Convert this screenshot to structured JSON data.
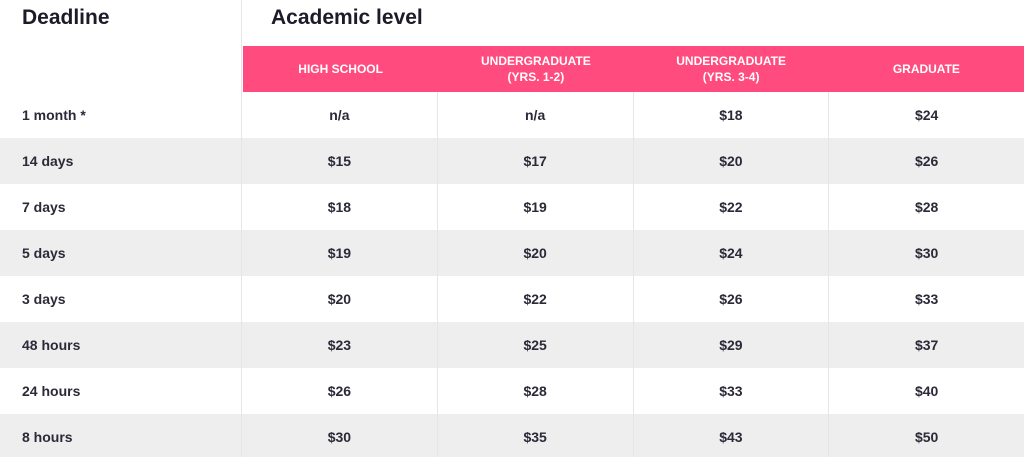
{
  "headings": {
    "deadline": "Deadline",
    "academic_level": "Academic level"
  },
  "columns": [
    {
      "line1": "HIGH SCHOOL",
      "line2": ""
    },
    {
      "line1": "UNDERGRADUATE",
      "line2": "(YRS. 1-2)"
    },
    {
      "line1": "UNDERGRADUATE",
      "line2": "(YRS. 3-4)"
    },
    {
      "line1": "GRADUATE",
      "line2": ""
    }
  ],
  "rows": [
    {
      "deadline": "1 month *",
      "prices": [
        "n/a",
        "n/a",
        "$18",
        "$24"
      ]
    },
    {
      "deadline": "14 days",
      "prices": [
        "$15",
        "$17",
        "$20",
        "$26"
      ]
    },
    {
      "deadline": "7 days",
      "prices": [
        "$18",
        "$19",
        "$22",
        "$28"
      ]
    },
    {
      "deadline": "5 days",
      "prices": [
        "$19",
        "$20",
        "$24",
        "$30"
      ]
    },
    {
      "deadline": "3 days",
      "prices": [
        "$20",
        "$22",
        "$26",
        "$33"
      ]
    },
    {
      "deadline": "48 hours",
      "prices": [
        "$23",
        "$25",
        "$29",
        "$37"
      ]
    },
    {
      "deadline": "24 hours",
      "prices": [
        "$26",
        "$28",
        "$33",
        "$40"
      ]
    },
    {
      "deadline": "8 hours",
      "prices": [
        "$30",
        "$35",
        "$43",
        "$50"
      ]
    }
  ],
  "colors": {
    "header_bg": "#ff4b7d",
    "shaded_row": "#eeeeee"
  }
}
